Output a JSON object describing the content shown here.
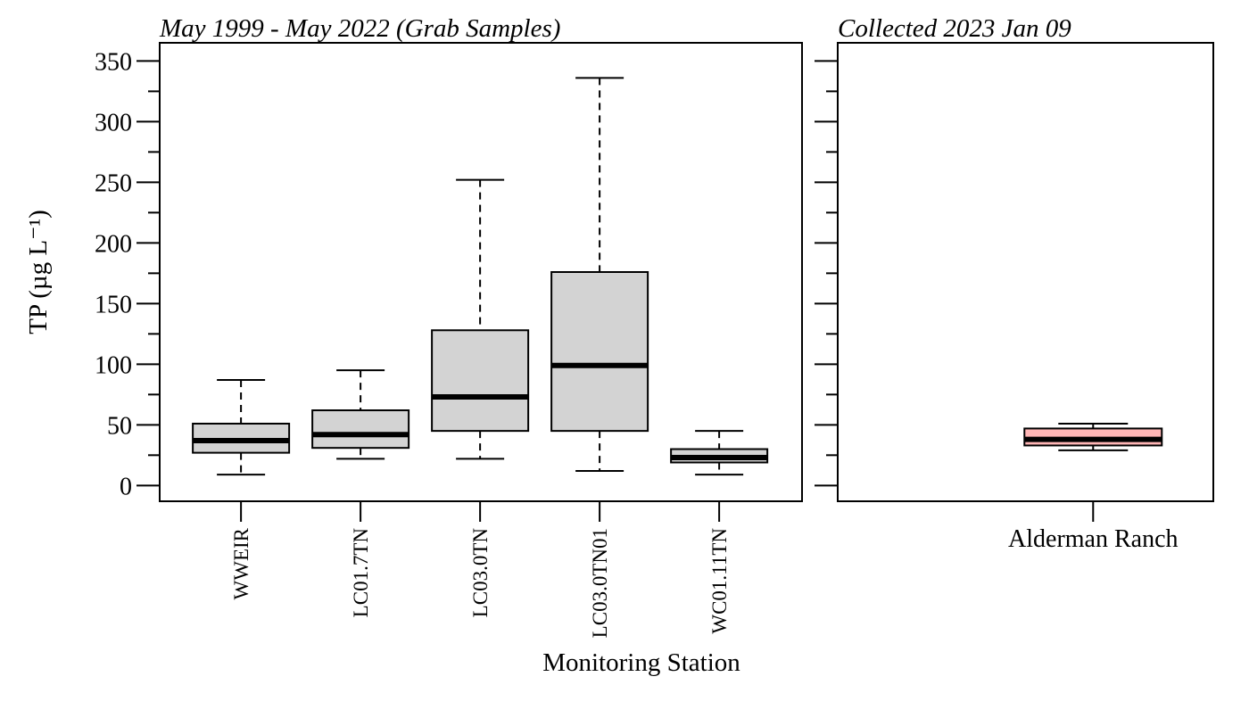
{
  "chart_data": [
    {
      "type": "box",
      "title": "May 1999 - May 2022 (Grab Samples)",
      "xlabel": "Monitoring Station",
      "ylabel": "TP (µg L⁻¹)",
      "ylim": [
        -13,
        365
      ],
      "yticks": [
        0,
        50,
        100,
        150,
        200,
        250,
        300,
        350
      ],
      "yticks_minor_step": 25,
      "grid": false,
      "legend": "none",
      "category_label_orientation": "vertical",
      "box_color": "#d3d3d3",
      "categories": [
        "WWEIR",
        "LC01.7TN",
        "LC03.0TN",
        "LC03.0TN01",
        "WC01.11TN"
      ],
      "boxes": [
        {
          "category": "WWEIR",
          "whisker_low": 9,
          "q1": 27,
          "median": 37,
          "q3": 51,
          "whisker_high": 87
        },
        {
          "category": "LC01.7TN",
          "whisker_low": 22,
          "q1": 31,
          "median": 42,
          "q3": 62,
          "whisker_high": 95
        },
        {
          "category": "LC03.0TN",
          "whisker_low": 22,
          "q1": 45,
          "median": 73,
          "q3": 128,
          "whisker_high": 252
        },
        {
          "category": "LC03.0TN01",
          "whisker_low": 12,
          "q1": 45,
          "median": 99,
          "q3": 176,
          "whisker_high": 336
        },
        {
          "category": "WC01.11TN",
          "whisker_low": 9,
          "q1": 19,
          "median": 23,
          "q3": 30,
          "whisker_high": 45
        }
      ]
    },
    {
      "type": "box",
      "title": "Collected 2023 Jan 09",
      "xlabel": "",
      "ylabel": "",
      "ylim": [
        -13,
        365
      ],
      "yticks": [
        0,
        50,
        100,
        150,
        200,
        250,
        300,
        350
      ],
      "yticks_minor_step": 25,
      "show_y_tick_labels": false,
      "grid": false,
      "legend": "none",
      "category_label_orientation": "horizontal",
      "box_color": "#ffb6b6",
      "categories": [
        "Alderman Ranch"
      ],
      "boxes": [
        {
          "category": "Alderman Ranch",
          "whisker_low": 29,
          "q1": 33,
          "median": 38,
          "q3": 47,
          "whisker_high": 51
        }
      ]
    }
  ]
}
